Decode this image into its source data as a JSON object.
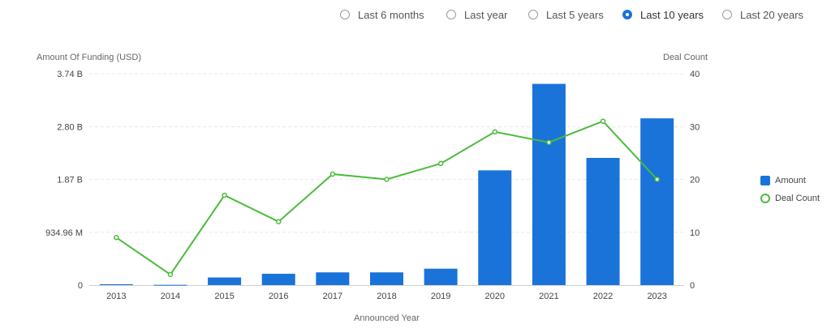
{
  "range_options": [
    {
      "label": "Last 6 months",
      "checked": false
    },
    {
      "label": "Last year",
      "checked": false
    },
    {
      "label": "Last 5 years",
      "checked": false
    },
    {
      "label": "Last 10 years",
      "checked": true
    },
    {
      "label": "Last 20 years",
      "checked": false
    }
  ],
  "colors": {
    "amount": "#1a73d9",
    "deal_count": "#4cbb3c",
    "accent": "#1a73d9"
  },
  "chart_data": {
    "type": "bar",
    "categories": [
      "2013",
      "2014",
      "2015",
      "2016",
      "2017",
      "2018",
      "2019",
      "2020",
      "2021",
      "2022",
      "2023"
    ],
    "series": [
      {
        "name": "Amount",
        "type": "bar",
        "axis": "left",
        "values": [
          15000000,
          5000000,
          135000000,
          200000000,
          225000000,
          225000000,
          290000000,
          2030000000,
          3560000000,
          2250000000,
          2950000000
        ]
      },
      {
        "name": "Deal Count",
        "type": "line",
        "axis": "right",
        "values": [
          9,
          2,
          17,
          12,
          21,
          20,
          23,
          29,
          27,
          31,
          20
        ]
      }
    ],
    "ylabel": "Amount Of Funding (USD)",
    "y2label": "Deal Count",
    "xlabel": "Announced Year",
    "ylim": [
      0,
      3740000000
    ],
    "y_ticks": [
      0,
      934960000,
      1870000000,
      2800000000,
      3740000000
    ],
    "y_tick_labels": [
      "0",
      "934.96 M",
      "1.87 B",
      "2.80 B",
      "3.74 B"
    ],
    "y2lim": [
      0,
      40
    ],
    "y2_ticks": [
      0,
      10,
      20,
      30,
      40
    ],
    "grid": true,
    "legend_position": "right"
  }
}
